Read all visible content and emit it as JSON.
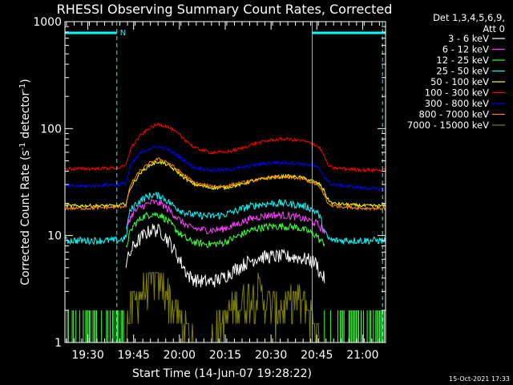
{
  "chart_data": {
    "type": "line",
    "title": "RHESSI Observing Summary Count Rates, Corrected",
    "xlabel": "Start Time (14-Jun-07 19:28:22)",
    "ylabel_main": "Corrected Count Rate (s",
    "ylabel_sup1": "-1",
    "ylabel_mid": " detector",
    "ylabel_sup2": "-1",
    "ylabel_end": ")",
    "yscale": "log",
    "ylim": [
      1,
      1000
    ],
    "xlim_minutes": [
      -7.5,
      97.5
    ],
    "x_ticks": [
      "19:30",
      "19:45",
      "20:00",
      "20:15",
      "20:30",
      "20:45",
      "21:00"
    ],
    "x_tick_minutes": [
      0,
      15,
      30,
      45,
      60,
      75,
      90
    ],
    "y_ticks": [
      "1",
      "10",
      "100",
      "1000"
    ],
    "y_tick_values": [
      1,
      10,
      100,
      1000
    ],
    "x_unit": "minutes after 19:30",
    "legend_header": [
      "Det 1,3,4,5,6,9,",
      "Att 0"
    ],
    "series": [
      {
        "name": "3 - 6 keV",
        "color": "#ffffff",
        "x": [
          12.5,
          13.5,
          15,
          18,
          21,
          24,
          27,
          30,
          33,
          36,
          40,
          44,
          48,
          52,
          56,
          60,
          64,
          68,
          72,
          75,
          76,
          77.5
        ],
        "y": [
          5.5,
          6.5,
          8,
          10,
          11.5,
          11,
          8.5,
          6,
          4.2,
          3.8,
          3.7,
          4.0,
          4.8,
          5.6,
          6.3,
          6.4,
          6.4,
          6.3,
          6.0,
          5.5,
          4.4,
          4.0
        ]
      },
      {
        "name": "6 - 12 keV",
        "color": "#ff40ff",
        "x": [
          12.5,
          13.5,
          15,
          18,
          21,
          24,
          27,
          30,
          33,
          36,
          40,
          44,
          48,
          52,
          56,
          60,
          64,
          68,
          72,
          75,
          76,
          77.5
        ],
        "y": [
          11,
          14,
          16.5,
          19,
          20.5,
          20,
          17,
          14,
          12,
          11.5,
          11.2,
          11.5,
          12.5,
          14,
          15,
          15.6,
          15.5,
          15,
          14,
          13,
          12,
          11
        ]
      },
      {
        "name": "12 - 25 keV",
        "color": "#40ff40",
        "x": [
          12.5,
          13.5,
          15,
          18,
          21,
          24,
          27,
          30,
          33,
          36,
          40,
          44,
          48,
          52,
          56,
          60,
          64,
          68,
          72,
          75,
          76,
          77.5
        ],
        "y": [
          7.5,
          10,
          12.5,
          15,
          16,
          15.5,
          13,
          10.5,
          9,
          8.5,
          8.3,
          8.5,
          9.5,
          10.8,
          11.8,
          12.2,
          12.2,
          12,
          11,
          10,
          9,
          8.5
        ]
      },
      {
        "name": "25 - 50 keV",
        "color": "#00ffff",
        "x": [
          -7.5,
          0,
          5,
          10,
          12.5,
          13.5,
          15,
          18,
          21,
          24,
          27,
          30,
          33,
          36,
          40,
          44,
          48,
          52,
          56,
          60,
          64,
          68,
          72,
          75,
          76,
          77.5,
          78.5,
          80,
          85,
          90,
          97.5
        ],
        "y": [
          9,
          9,
          9,
          9,
          9.5,
          16,
          19,
          22,
          24,
          23.5,
          20,
          17.5,
          16,
          15.5,
          15.2,
          15.5,
          16.8,
          18.5,
          19.5,
          20,
          20,
          19.5,
          18.5,
          16.5,
          15,
          11,
          9.5,
          9,
          9,
          9,
          9
        ]
      },
      {
        "name": "50 - 100 keV",
        "color": "#ffff00",
        "x": [
          -7.5,
          0,
          10,
          12.5,
          14,
          17,
          20,
          23,
          26,
          29,
          32,
          35,
          40,
          45,
          50,
          55,
          60,
          65,
          70,
          74,
          76,
          77.5,
          78.5,
          80,
          90,
          97.5
        ],
        "y": [
          19,
          19,
          19,
          20,
          28,
          38,
          45,
          49,
          46,
          40,
          34,
          30,
          28,
          28,
          30,
          33,
          35,
          36,
          35,
          32,
          30,
          26,
          22,
          20,
          19,
          19
        ]
      },
      {
        "name": "100 - 300 keV",
        "color": "#ff0000",
        "x": [
          -7.5,
          0,
          10,
          12.5,
          14,
          17,
          20,
          23,
          26,
          29,
          32,
          35,
          40,
          45,
          50,
          55,
          60,
          65,
          70,
          74,
          76,
          77.5,
          78.5,
          80,
          90,
          97.5
        ],
        "y": [
          42,
          42,
          43,
          45,
          65,
          85,
          100,
          110,
          105,
          92,
          78,
          66,
          60,
          60,
          65,
          73,
          78,
          80,
          77,
          72,
          66,
          55,
          46,
          43,
          41,
          41
        ]
      },
      {
        "name": "300 - 800 keV",
        "color": "#0000ff",
        "x": [
          -7.5,
          0,
          10,
          12.5,
          14,
          17,
          20,
          23,
          26,
          29,
          32,
          35,
          40,
          45,
          50,
          55,
          60,
          65,
          70,
          74,
          76,
          77.5,
          78.5,
          80,
          90,
          97.5
        ],
        "y": [
          29,
          29,
          30,
          31,
          45,
          58,
          65,
          68,
          64,
          57,
          49,
          43,
          41,
          41,
          43,
          46,
          48,
          48,
          47,
          45,
          41,
          36,
          32,
          30,
          28,
          27
        ]
      },
      {
        "name": "800 - 7000 keV",
        "color": "#ff8c00",
        "x": [
          -7.5,
          0,
          10,
          12.5,
          14,
          17,
          20,
          23,
          26,
          29,
          32,
          35,
          40,
          45,
          50,
          55,
          60,
          65,
          70,
          74,
          76,
          77.5,
          78.5,
          80,
          90,
          97.5
        ],
        "y": [
          18,
          18,
          18.5,
          19,
          30,
          40,
          47,
          52,
          49,
          42,
          36,
          31,
          29,
          29,
          31,
          33,
          35,
          35,
          34,
          31,
          28,
          24,
          20,
          19,
          18,
          18
        ]
      },
      {
        "name": "7000 - 15000 keV",
        "color": "#808000",
        "x": [
          -7.5,
          12,
          14,
          18,
          22,
          26,
          28,
          30,
          35,
          40,
          44,
          48,
          52,
          56,
          60,
          64,
          68,
          72,
          74,
          76,
          97.5
        ],
        "y": [
          1,
          1,
          2,
          3,
          4,
          3,
          2,
          1.5,
          1,
          1,
          1.5,
          2,
          2.5,
          3,
          2,
          2,
          2.5,
          2,
          1.5,
          1,
          1
        ]
      }
    ],
    "annotations": {
      "night_marker_label": "N",
      "attenuator_segments_minutes": [
        [
          -7.5,
          9.5
        ],
        [
          73.5,
          97.5
        ]
      ],
      "dashed_lines_minutes": [
        9.5,
        96.5
      ],
      "solid_lines_minutes": [
        -7.5,
        73.5
      ]
    },
    "grid": false,
    "legend_position": "right"
  },
  "footer": {
    "timestamp": "15-Oct-2021 17:33"
  }
}
